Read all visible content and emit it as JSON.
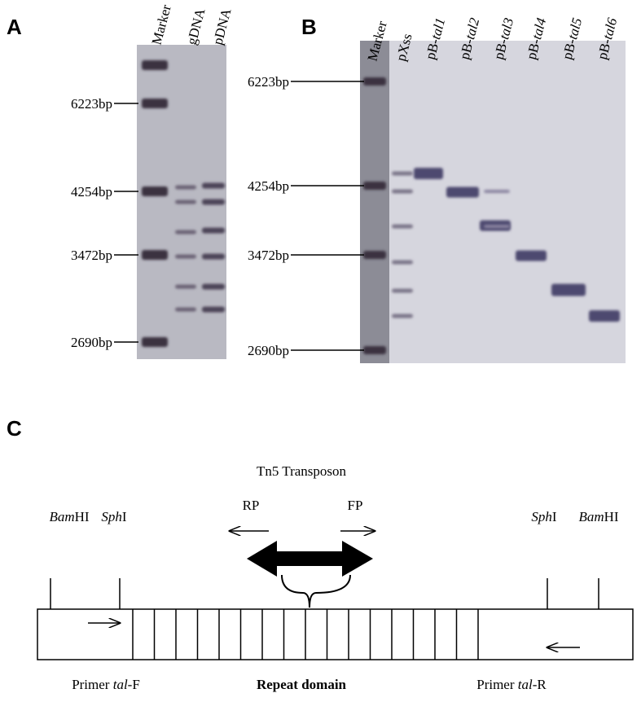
{
  "panels": {
    "a": "A",
    "b": "B",
    "c": "C"
  },
  "gel_a": {
    "lanes": [
      "Marker",
      "gDNA",
      "pDNA"
    ],
    "markers": [
      "6223bp",
      "4254bp",
      "3472bp",
      "2690bp"
    ]
  },
  "gel_b": {
    "lanes": [
      {
        "text": "Marker"
      },
      {
        "text": "pXss"
      },
      {
        "text": "pB-",
        "italic": "tal1"
      },
      {
        "text": "pB-",
        "italic": "tal2"
      },
      {
        "text": "pB-",
        "italic": "tal3"
      },
      {
        "text": "pB-",
        "italic": "tal4"
      },
      {
        "text": "pB-",
        "italic": "tal5"
      },
      {
        "text": "pB-",
        "italic": "tal6"
      }
    ],
    "markers": [
      "6223bp",
      "4254bp",
      "3472bp",
      "2690bp"
    ]
  },
  "diagram": {
    "title": "Tn5 Transposon",
    "rp": "RP",
    "fp": "FP",
    "sites": [
      {
        "italic": "Bam",
        "text": "HI"
      },
      {
        "italic": "Sph",
        "text": "I"
      },
      {
        "italic": "Sph",
        "text": "I"
      },
      {
        "italic": "Bam",
        "text": "HI"
      }
    ],
    "primer_f": {
      "text": "Primer ",
      "italic": "tal",
      "suffix": "-F"
    },
    "repeat": "Repeat domain",
    "primer_r": {
      "text": "Primer ",
      "italic": "tal",
      "suffix": "-R"
    }
  }
}
